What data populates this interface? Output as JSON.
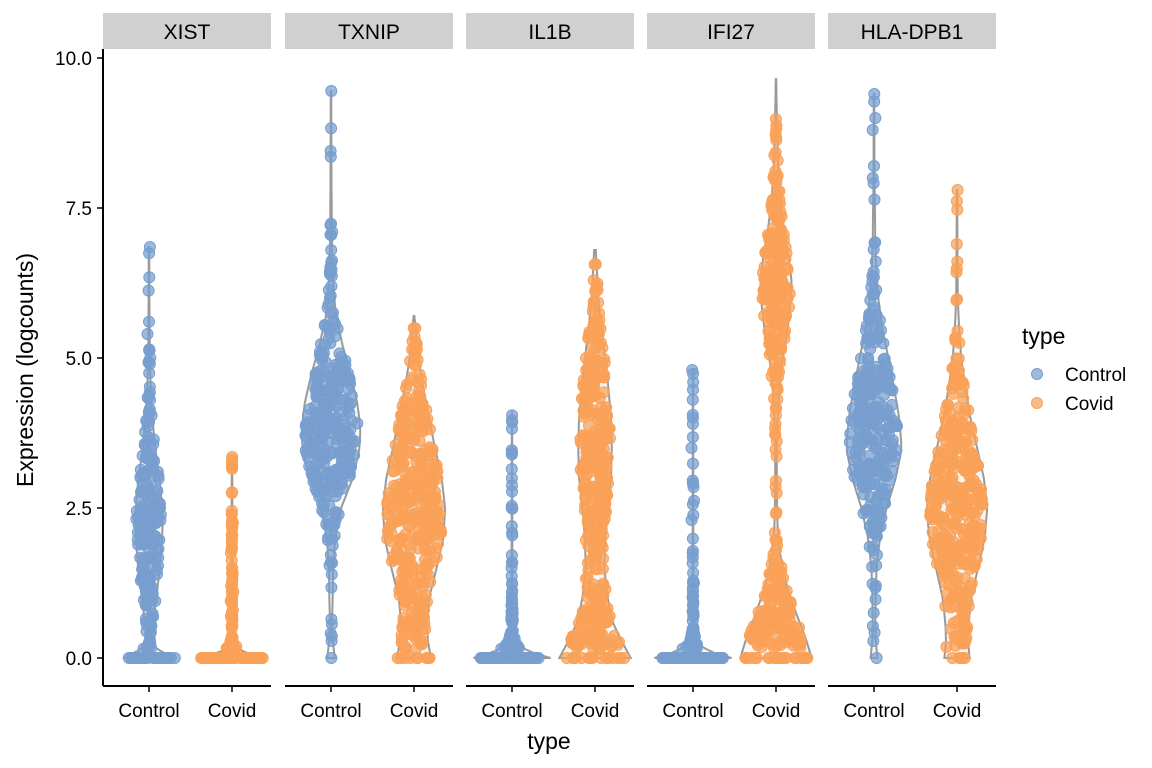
{
  "chart_data": {
    "type": "violin",
    "xlabel": "type",
    "ylabel": "Expression (logcounts)",
    "ylim": [
      -0.45,
      10.15
    ],
    "yticks": [
      0.0,
      2.5,
      5.0,
      7.5,
      10.0
    ],
    "ytick_labels": [
      "0.0",
      "2.5",
      "5.0",
      "7.5",
      "10.0"
    ],
    "categories": [
      "Control",
      "Covid"
    ],
    "colors": {
      "Control": "#779ecf",
      "Covid": "#f9a158"
    },
    "violin_outline": "#9a9a9a",
    "strip_fill": "#d0d0d0",
    "legend": {
      "title": "type",
      "position": "right",
      "entries": [
        "Control",
        "Covid"
      ]
    },
    "panels": [
      {
        "gene": "XIST",
        "violins": [
          {
            "group": "Control",
            "max": 6.85,
            "zero_fraction": 0.55,
            "profile": [
              [
                0,
                0.62
              ],
              [
                0.2,
                0.03
              ],
              [
                0.4,
                0.06
              ],
              [
                0.7,
                0.12
              ],
              [
                1.0,
                0.17
              ],
              [
                1.5,
                0.26
              ],
              [
                2.0,
                0.31
              ],
              [
                2.3,
                0.33
              ],
              [
                2.6,
                0.3
              ],
              [
                3.0,
                0.25
              ],
              [
                3.5,
                0.15
              ],
              [
                4.0,
                0.08
              ],
              [
                4.5,
                0.04
              ],
              [
                5.0,
                0.02
              ],
              [
                6.0,
                0.01
              ],
              [
                6.85,
                0.005
              ]
            ],
            "outliers": [
              4.9,
              5.0,
              5.4,
              6.85,
              0.4
            ]
          },
          {
            "group": "Covid",
            "max": 3.35,
            "zero_fraction": 0.95,
            "profile": [
              [
                0,
                0.75
              ],
              [
                0.1,
                0.28
              ],
              [
                0.2,
                0.1
              ],
              [
                0.3,
                0.03
              ],
              [
                0.5,
                0.012
              ],
              [
                1.0,
                0.01
              ],
              [
                1.5,
                0.012
              ],
              [
                2.0,
                0.01
              ],
              [
                2.5,
                0.008
              ],
              [
                3.0,
                0.006
              ],
              [
                3.35,
                0.004
              ]
            ],
            "outliers": [
              0.7,
              0.8,
              0.95,
              1.1,
              1.2,
              1.4,
              1.75,
              1.85,
              2.05,
              2.25,
              2.4,
              3.35
            ]
          }
        ]
      },
      {
        "gene": "TXNIP",
        "violins": [
          {
            "group": "Control",
            "max": 9.45,
            "zero_fraction": 0.02,
            "profile": [
              [
                0,
                0.09
              ],
              [
                0.3,
                0.04
              ],
              [
                0.6,
                0.025
              ],
              [
                1.0,
                0.04
              ],
              [
                1.5,
                0.05
              ],
              [
                2.0,
                0.1
              ],
              [
                2.5,
                0.24
              ],
              [
                3.0,
                0.52
              ],
              [
                3.5,
                0.68
              ],
              [
                3.8,
                0.7
              ],
              [
                4.2,
                0.64
              ],
              [
                4.7,
                0.48
              ],
              [
                5.2,
                0.28
              ],
              [
                5.7,
                0.12
              ],
              [
                6.2,
                0.05
              ],
              [
                7.0,
                0.02
              ],
              [
                8.0,
                0.012
              ],
              [
                9.45,
                0.006
              ]
            ],
            "outliers": [
              6.8,
              7.05,
              7.1,
              8.45,
              9.45
            ]
          },
          {
            "group": "Covid",
            "max": 5.7,
            "zero_fraction": 0.15,
            "profile": [
              [
                0,
                0.4
              ],
              [
                0.3,
                0.33
              ],
              [
                0.6,
                0.31
              ],
              [
                1.0,
                0.36
              ],
              [
                1.5,
                0.54
              ],
              [
                2.0,
                0.7
              ],
              [
                2.5,
                0.74
              ],
              [
                3.0,
                0.66
              ],
              [
                3.5,
                0.5
              ],
              [
                4.0,
                0.36
              ],
              [
                4.5,
                0.22
              ],
              [
                5.0,
                0.1
              ],
              [
                5.5,
                0.04
              ],
              [
                5.7,
                0.01
              ]
            ],
            "outliers": []
          }
        ]
      },
      {
        "gene": "IL1B",
        "violins": [
          {
            "group": "Control",
            "max": 4.1,
            "zero_fraction": 0.9,
            "profile": [
              [
                0,
                0.92
              ],
              [
                0.1,
                0.42
              ],
              [
                0.25,
                0.1
              ],
              [
                0.5,
                0.025
              ],
              [
                1.0,
                0.012
              ],
              [
                2.0,
                0.008
              ],
              [
                3.0,
                0.006
              ],
              [
                4.1,
                0.004
              ]
            ],
            "outliers": []
          },
          {
            "group": "Covid",
            "max": 6.8,
            "zero_fraction": 0.3,
            "profile": [
              [
                0,
                0.85
              ],
              [
                0.3,
                0.62
              ],
              [
                0.6,
                0.42
              ],
              [
                1.0,
                0.3
              ],
              [
                1.5,
                0.22
              ],
              [
                2.0,
                0.24
              ],
              [
                2.5,
                0.3
              ],
              [
                3.0,
                0.38
              ],
              [
                3.5,
                0.4
              ],
              [
                4.0,
                0.38
              ],
              [
                4.5,
                0.32
              ],
              [
                5.0,
                0.24
              ],
              [
                5.5,
                0.15
              ],
              [
                6.0,
                0.08
              ],
              [
                6.8,
                0.02
              ]
            ],
            "outliers": []
          }
        ]
      },
      {
        "gene": "IFI27",
        "violins": [
          {
            "group": "Control",
            "max": 4.8,
            "zero_fraction": 0.97,
            "profile": [
              [
                0,
                0.92
              ],
              [
                0.1,
                0.42
              ],
              [
                0.25,
                0.08
              ],
              [
                0.5,
                0.02
              ],
              [
                1.0,
                0.01
              ],
              [
                2.0,
                0.008
              ],
              [
                3.0,
                0.006
              ],
              [
                4.0,
                0.005
              ],
              [
                4.8,
                0.004
              ]
            ],
            "outliers": [
              0.4,
              0.62,
              1.25,
              1.68,
              2.3,
              2.62,
              2.85,
              3.5,
              4.8
            ]
          },
          {
            "group": "Covid",
            "max": 9.65,
            "zero_fraction": 0.35,
            "profile": [
              [
                0,
                0.85
              ],
              [
                0.3,
                0.72
              ],
              [
                0.6,
                0.56
              ],
              [
                0.9,
                0.4
              ],
              [
                1.3,
                0.22
              ],
              [
                1.8,
                0.08
              ],
              [
                2.3,
                0.03
              ],
              [
                3.0,
                0.02
              ],
              [
                3.5,
                0.018
              ],
              [
                4.0,
                0.04
              ],
              [
                4.5,
                0.08
              ],
              [
                5.0,
                0.16
              ],
              [
                5.5,
                0.28
              ],
              [
                6.0,
                0.36
              ],
              [
                6.3,
                0.37
              ],
              [
                6.7,
                0.3
              ],
              [
                7.2,
                0.18
              ],
              [
                7.7,
                0.1
              ],
              [
                8.2,
                0.05
              ],
              [
                9.0,
                0.02
              ],
              [
                9.65,
                0.005
              ]
            ],
            "outliers": []
          }
        ]
      },
      {
        "gene": "HLA-DPB1",
        "violins": [
          {
            "group": "Control",
            "max": 9.4,
            "zero_fraction": 0.02,
            "profile": [
              [
                0,
                0.08
              ],
              [
                0.3,
                0.04
              ],
              [
                0.6,
                0.03
              ],
              [
                1.0,
                0.04
              ],
              [
                1.5,
                0.06
              ],
              [
                2.0,
                0.14
              ],
              [
                2.5,
                0.3
              ],
              [
                3.0,
                0.52
              ],
              [
                3.5,
                0.66
              ],
              [
                4.0,
                0.6
              ],
              [
                4.5,
                0.48
              ],
              [
                5.0,
                0.34
              ],
              [
                5.5,
                0.2
              ],
              [
                6.0,
                0.1
              ],
              [
                6.5,
                0.05
              ],
              [
                7.0,
                0.03
              ],
              [
                8.0,
                0.012
              ],
              [
                9.4,
                0.006
              ]
            ],
            "outliers": [
              8.0,
              8.2,
              8.8,
              9.0,
              9.4
            ]
          },
          {
            "group": "Covid",
            "max": 7.8,
            "zero_fraction": 0.08,
            "profile": [
              [
                0,
                0.3
              ],
              [
                0.3,
                0.26
              ],
              [
                0.6,
                0.28
              ],
              [
                1.0,
                0.34
              ],
              [
                1.5,
                0.5
              ],
              [
                2.0,
                0.66
              ],
              [
                2.5,
                0.72
              ],
              [
                3.0,
                0.64
              ],
              [
                3.5,
                0.48
              ],
              [
                4.0,
                0.32
              ],
              [
                4.5,
                0.2
              ],
              [
                5.0,
                0.1
              ],
              [
                5.5,
                0.05
              ],
              [
                6.0,
                0.02
              ],
              [
                7.0,
                0.01
              ],
              [
                7.8,
                0.005
              ]
            ],
            "outliers": [
              7.8
            ]
          }
        ]
      }
    ]
  }
}
